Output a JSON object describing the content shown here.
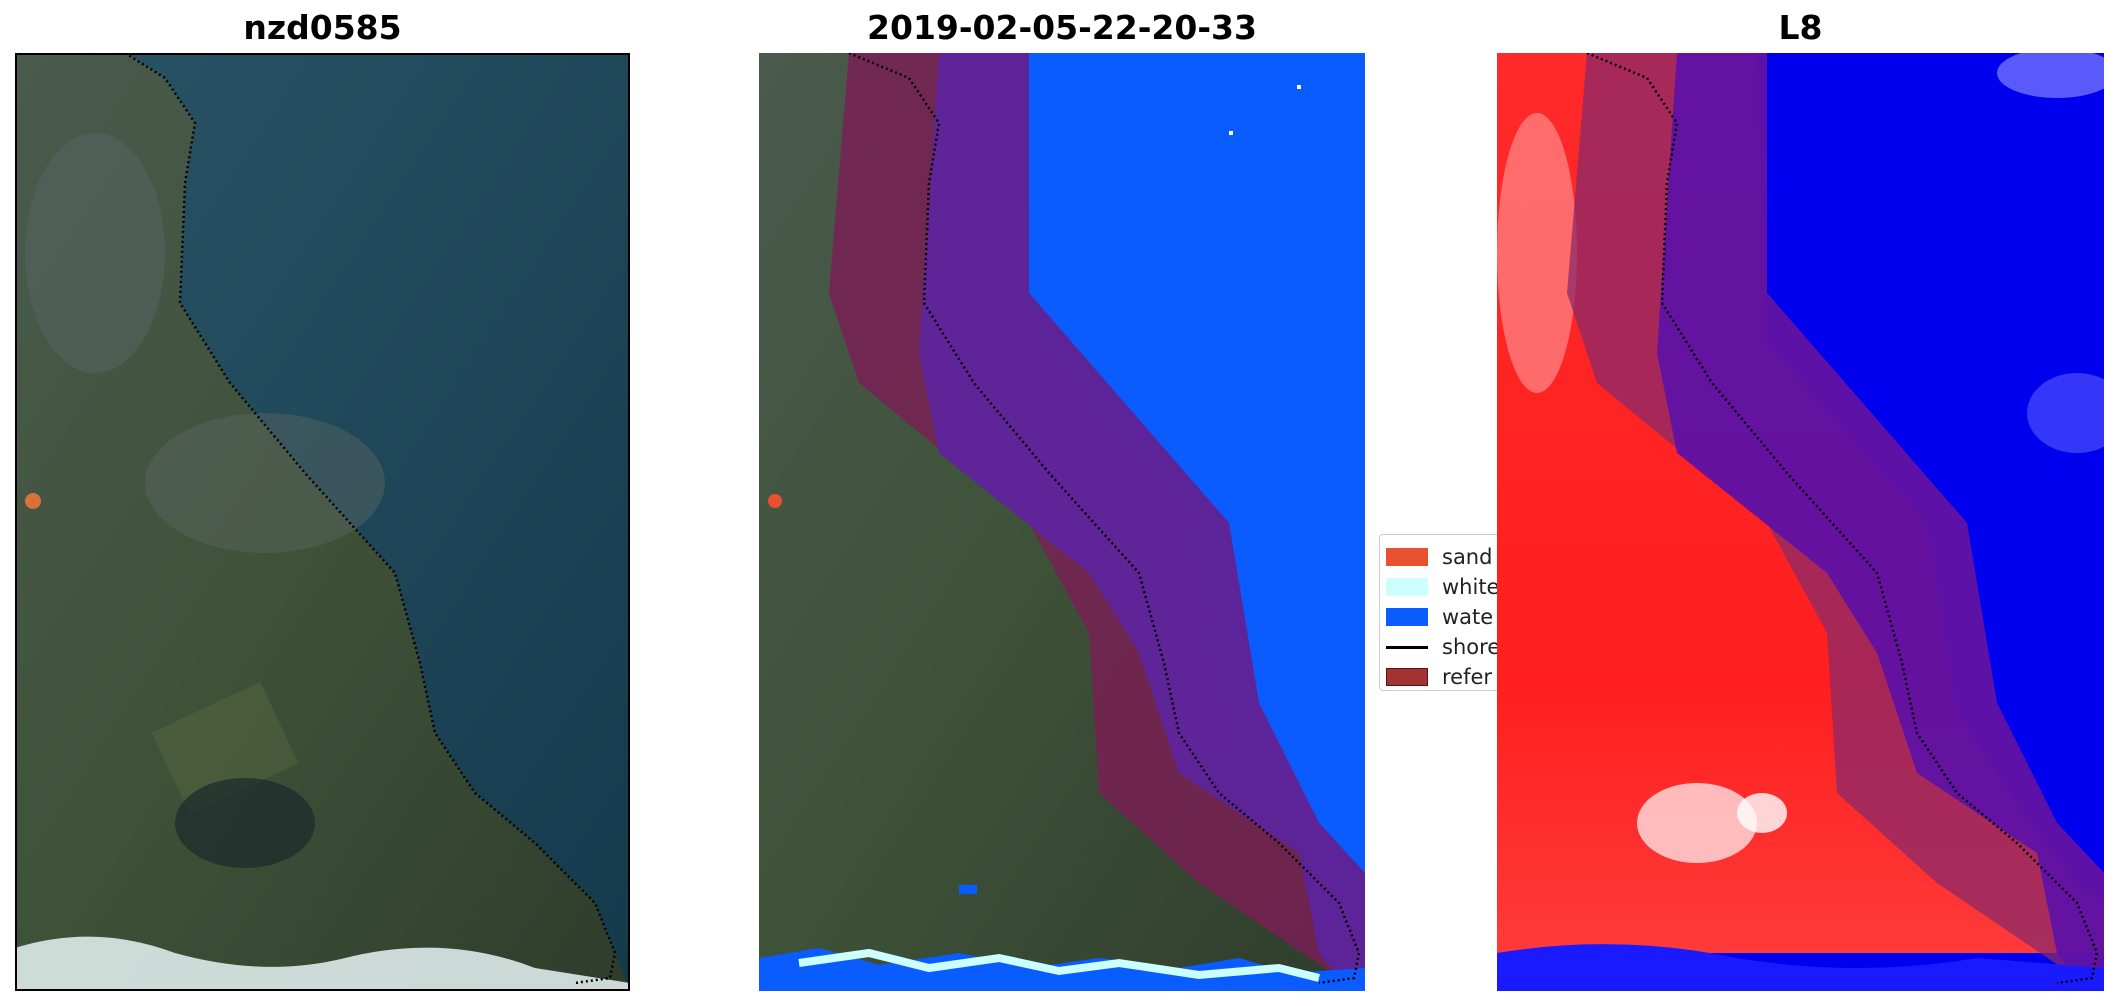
{
  "panels": [
    {
      "title": "nzd0585"
    },
    {
      "title": "2019-02-05-22-20-33"
    },
    {
      "title": "L8"
    }
  ],
  "legend": {
    "items": [
      {
        "label": "sand",
        "color": "#e8512e",
        "kind": "patch"
      },
      {
        "label": "white",
        "color": "#ccffff",
        "kind": "patch"
      },
      {
        "label": "wate",
        "color": "#0a5cff",
        "kind": "patch"
      },
      {
        "label": "shore",
        "color": "#000000",
        "kind": "line"
      },
      {
        "label": "refer",
        "color": "#a33333",
        "kind": "patch"
      }
    ]
  },
  "colors": {
    "land": "#3f4f3a",
    "sea": "#1e4a5c",
    "water_class": "#0a5cff",
    "reference_buffer": "#7a1f55",
    "buffer_over_water": "#5d249c",
    "index_land": "#ff2a2a",
    "index_water": "#0000ee",
    "shoreline": "#000000",
    "surf": "#dff6ff"
  }
}
